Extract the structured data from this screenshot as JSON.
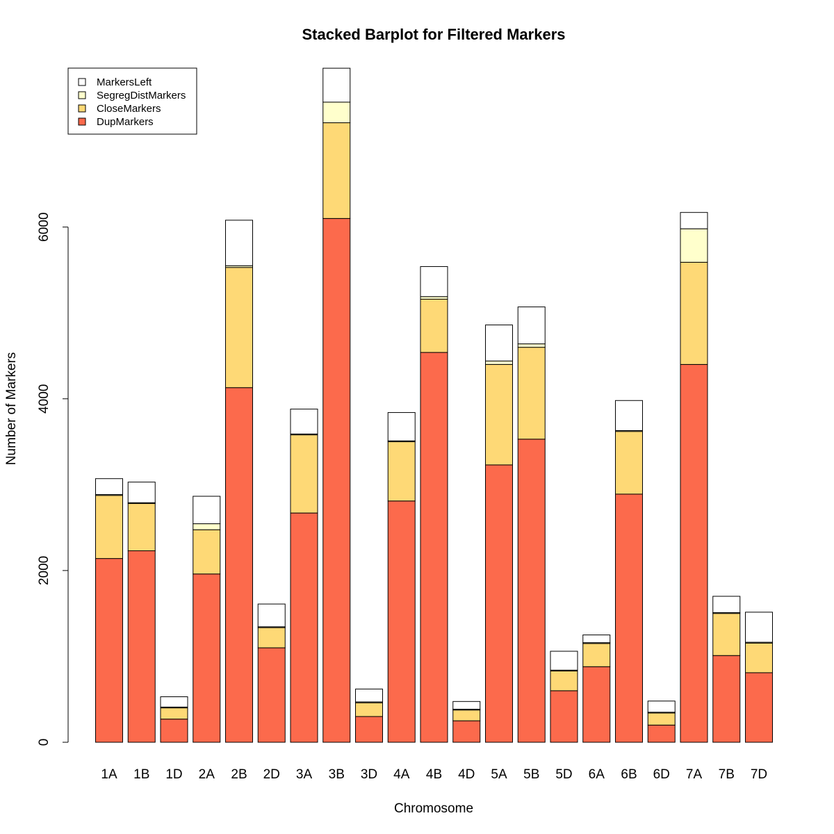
{
  "chart_data": {
    "type": "bar",
    "stacked": true,
    "title": "Stacked Barplot for Filtered Markers",
    "xlabel": "Chromosome",
    "ylabel": "Number of Markers",
    "ylim": [
      0,
      7850
    ],
    "yticks": [
      0,
      2000,
      4000,
      6000
    ],
    "grid": false,
    "legend_position": "top-left",
    "categories": [
      "1A",
      "1B",
      "1D",
      "2A",
      "2B",
      "2D",
      "3A",
      "3B",
      "3D",
      "4A",
      "4B",
      "4D",
      "5A",
      "5B",
      "5D",
      "6A",
      "6B",
      "6D",
      "7A",
      "7B",
      "7D"
    ],
    "series": [
      {
        "name": "DupMarkers",
        "color": "#fc6a4c",
        "values": [
          2140,
          2230,
          270,
          1960,
          4130,
          1100,
          2670,
          6100,
          300,
          2810,
          4540,
          250,
          3230,
          3530,
          600,
          880,
          2890,
          200,
          4400,
          1010,
          810
        ]
      },
      {
        "name": "CloseMarkers",
        "color": "#fed976",
        "values": [
          735,
          550,
          130,
          515,
          1400,
          235,
          910,
          1115,
          160,
          690,
          620,
          125,
          1170,
          1070,
          230,
          270,
          730,
          140,
          1190,
          490,
          345
        ]
      },
      {
        "name": "SegregDistMarkers",
        "color": "#ffffcc",
        "values": [
          10,
          10,
          10,
          70,
          20,
          10,
          10,
          240,
          10,
          10,
          30,
          10,
          40,
          40,
          10,
          10,
          10,
          10,
          390,
          10,
          10
        ]
      },
      {
        "name": "MarkersLeft",
        "color": "#ffffff",
        "values": [
          185,
          240,
          120,
          320,
          530,
          265,
          290,
          395,
          150,
          330,
          350,
          90,
          420,
          430,
          220,
          90,
          350,
          130,
          190,
          190,
          350
        ]
      }
    ],
    "legend_order": [
      "MarkersLeft",
      "SegregDistMarkers",
      "CloseMarkers",
      "DupMarkers"
    ]
  }
}
